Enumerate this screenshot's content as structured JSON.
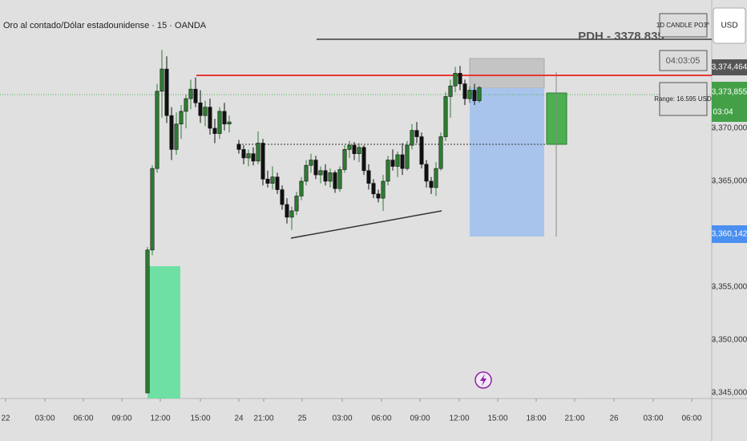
{
  "chart_data": {
    "type": "candlestick",
    "title": "Oro al contado/Dólar estadounidense · 15 · OANDA",
    "x": [
      46,
      47.5,
      49,
      50.5,
      52,
      53.5,
      55,
      56.5,
      58,
      59.5,
      61,
      62.5,
      64,
      65.5,
      67,
      68.5,
      70,
      71.5,
      74.5,
      76,
      77.5,
      79,
      80.5,
      82,
      83.5,
      85,
      86.5,
      88,
      89.5,
      91,
      92.5,
      94,
      95.5,
      97,
      98.5,
      100,
      101.5,
      103,
      104.5,
      106,
      107.5,
      109,
      110.5,
      112,
      113.5,
      115,
      116.5,
      118,
      119.5,
      121,
      122.5,
      124,
      125.5,
      127,
      128.5,
      130,
      131.5,
      133,
      134.5,
      136,
      137.5,
      139,
      140.5,
      142,
      143.5,
      145,
      146.5,
      148,
      149.5
    ],
    "open": [
      3345.0,
      3358.5,
      3366.2,
      3373.5,
      3375.6,
      3371.2,
      3368.0,
      3370.4,
      3371.6,
      3372.8,
      3373.7,
      3372.4,
      3371.2,
      3372.0,
      3370.0,
      3369.5,
      3371.6,
      3370.4,
      3368.5,
      3368.0,
      3367.2,
      3367.6,
      3366.9,
      3368.6,
      3365.2,
      3364.8,
      3365.4,
      3364.2,
      3362.8,
      3361.6,
      3362.2,
      3363.6,
      3365.0,
      3366.5,
      3367.0,
      3365.6,
      3366.0,
      3365.0,
      3365.8,
      3364.3,
      3366.1,
      3368.0,
      3368.4,
      3367.6,
      3368.2,
      3366.0,
      3364.8,
      3363.8,
      3363.4,
      3365.0,
      3367.0,
      3366.4,
      3367.5,
      3366.2,
      3368.4,
      3369.8,
      3369.2,
      3366.6,
      3365.0,
      3364.4,
      3366.2,
      3369.2,
      3373.0,
      3374.0,
      3375.2,
      3374.2,
      3372.8,
      3373.6,
      3372.6
    ],
    "high": [
      3358.8,
      3366.5,
      3374.2,
      3377.4,
      3376.8,
      3372.0,
      3371.5,
      3372.2,
      3373.2,
      3374.6,
      3374.8,
      3373.6,
      3372.6,
      3372.8,
      3370.9,
      3372.0,
      3372.4,
      3371.2,
      3368.9,
      3368.4,
      3368.0,
      3368.2,
      3369.7,
      3369.0,
      3366.0,
      3366.4,
      3365.8,
      3364.6,
      3363.4,
      3362.6,
      3364.0,
      3365.4,
      3367.0,
      3367.6,
      3367.4,
      3366.4,
      3366.6,
      3366.2,
      3366.0,
      3366.4,
      3368.4,
      3368.8,
      3368.7,
      3368.6,
      3368.4,
      3366.6,
      3365.2,
      3364.2,
      3365.6,
      3367.4,
      3368.0,
      3367.8,
      3368.6,
      3368.8,
      3370.4,
      3370.6,
      3369.6,
      3367.0,
      3365.4,
      3366.8,
      3369.6,
      3373.4,
      3374.6,
      3375.8,
      3375.9,
      3374.6,
      3374.0,
      3374.2,
      3374.0
    ],
    "low": [
      3345.0,
      3358.0,
      3365.8,
      3371.0,
      3370.5,
      3367.0,
      3367.5,
      3369.0,
      3370.0,
      3371.8,
      3372.0,
      3370.5,
      3370.2,
      3369.4,
      3368.6,
      3369.0,
      3369.8,
      3369.6,
      3367.6,
      3366.6,
      3366.4,
      3366.5,
      3366.6,
      3364.6,
      3364.4,
      3364.2,
      3363.8,
      3362.3,
      3361.0,
      3360.4,
      3361.8,
      3363.2,
      3364.6,
      3365.8,
      3365.2,
      3364.8,
      3364.6,
      3364.4,
      3363.9,
      3364.0,
      3365.8,
      3367.2,
      3367.0,
      3366.8,
      3365.6,
      3364.2,
      3363.4,
      3363.0,
      3362.2,
      3364.6,
      3366.0,
      3365.4,
      3365.6,
      3366.0,
      3368.0,
      3368.6,
      3366.2,
      3364.4,
      3363.8,
      3363.6,
      3366.0,
      3368.8,
      3371.0,
      3373.4,
      3373.6,
      3372.2,
      3372.4,
      3372.2,
      3372.4
    ],
    "close": [
      3358.5,
      3366.2,
      3373.5,
      3375.6,
      3371.2,
      3368.0,
      3370.4,
      3371.6,
      3372.8,
      3373.7,
      3372.4,
      3371.2,
      3372.0,
      3370.0,
      3369.5,
      3371.6,
      3370.4,
      3370.6,
      3368.0,
      3367.2,
      3367.6,
      3366.9,
      3368.6,
      3365.2,
      3364.8,
      3365.4,
      3364.2,
      3362.8,
      3361.6,
      3362.2,
      3363.6,
      3365.0,
      3366.5,
      3367.0,
      3365.6,
      3366.0,
      3365.0,
      3365.8,
      3364.3,
      3366.1,
      3368.0,
      3368.4,
      3367.6,
      3368.2,
      3366.0,
      3364.8,
      3363.8,
      3363.4,
      3365.0,
      3367.0,
      3366.4,
      3367.5,
      3366.2,
      3368.4,
      3369.8,
      3369.2,
      3366.6,
      3365.0,
      3364.4,
      3366.2,
      3369.2,
      3373.0,
      3374.0,
      3375.2,
      3374.2,
      3372.8,
      3373.6,
      3372.6,
      3373.855
    ],
    "up_color": "#2e7d32",
    "down_color": "#111111",
    "xlim": [
      0,
      222
    ],
    "ylim": [
      3344.47,
      3382.12
    ],
    "xticks": [
      {
        "value": 1.75,
        "label": "22"
      },
      {
        "value": 14,
        "label": "03:00"
      },
      {
        "value": 26,
        "label": "06:00"
      },
      {
        "value": 38,
        "label": "09:00"
      },
      {
        "value": 50,
        "label": "12:00"
      },
      {
        "value": 62.5,
        "label": "15:00"
      },
      {
        "value": 74.5,
        "label": "24"
      },
      {
        "value": 82.25,
        "label": "21:00"
      },
      {
        "value": 94.25,
        "label": "25"
      },
      {
        "value": 106.75,
        "label": "03:00"
      },
      {
        "value": 119,
        "label": "06:00"
      },
      {
        "value": 131,
        "label": "09:00"
      },
      {
        "value": 143.25,
        "label": "12:00"
      },
      {
        "value": 155.25,
        "label": "15:00"
      },
      {
        "value": 167.25,
        "label": "18:00"
      },
      {
        "value": 179.25,
        "label": "21:00"
      },
      {
        "value": 191.5,
        "label": "26"
      },
      {
        "value": 203.75,
        "label": "03:00"
      },
      {
        "value": 215.75,
        "label": "06:00"
      }
    ],
    "yticks": [
      {
        "value": 3345,
        "label": "3,345,000"
      },
      {
        "value": 3350,
        "label": "3,350,000"
      },
      {
        "value": 3355,
        "label": "3,355,000"
      },
      {
        "value": 3365,
        "label": "3,365,000"
      },
      {
        "value": 3370,
        "label": "3,370,000"
      }
    ],
    "currency": "USD",
    "price_tags": [
      "3,374,464",
      "3,373,855",
      "3,360,142"
    ],
    "countdown": "03:04",
    "annotations": [
      "PDH - 3378.835",
      "1D CANDLE PO3°",
      "04:03:05",
      "Range: 16.595 USD"
    ]
  }
}
